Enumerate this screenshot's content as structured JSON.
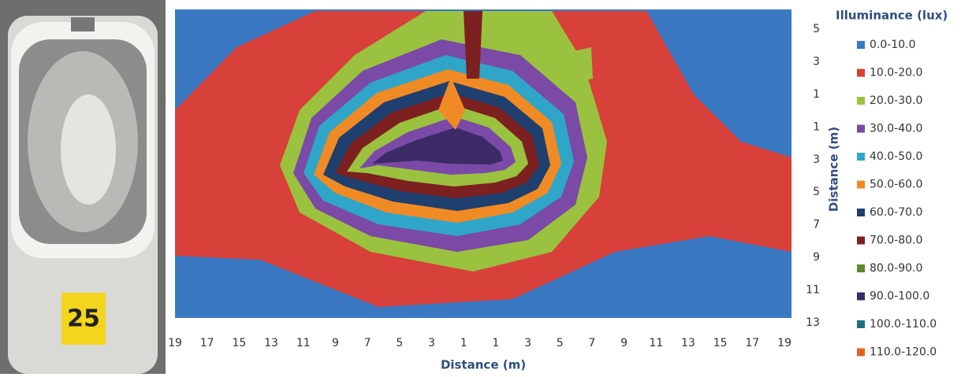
{
  "chart_data": {
    "type": "contour",
    "x_label": "Distance (m)",
    "y_label": "Distance (m)",
    "legend_title": "Illuminance (lux)",
    "x_categories": [
      19,
      17,
      15,
      13,
      11,
      9,
      7,
      5,
      3,
      1,
      1,
      3,
      5,
      7,
      9,
      11,
      13,
      15,
      17,
      19
    ],
    "y_categories": [
      5,
      3,
      1,
      1,
      3,
      5,
      7,
      9,
      11,
      13
    ],
    "series": [
      {
        "name": "0.0-10.0",
        "color": "#3a78c2"
      },
      {
        "name": "10.0-20.0",
        "color": "#d8403a"
      },
      {
        "name": "20.0-30.0",
        "color": "#9bc23e"
      },
      {
        "name": "30.0-40.0",
        "color": "#7a4aa6"
      },
      {
        "name": "40.0-50.0",
        "color": "#2fa6c8"
      },
      {
        "name": "50.0-60.0",
        "color": "#f08a24"
      },
      {
        "name": "60.0-70.0",
        "color": "#1f3f6e"
      },
      {
        "name": "70.0-80.0",
        "color": "#7c2020"
      },
      {
        "name": "80.0-90.0",
        "color": "#5e8a2a"
      },
      {
        "name": "90.0-100.0",
        "color": "#3b2a66"
      },
      {
        "name": "100.0-110.0",
        "color": "#1e6f7e"
      },
      {
        "name": "110.0-120.0",
        "color": "#e06420"
      }
    ]
  },
  "photo": {
    "label": "25"
  }
}
